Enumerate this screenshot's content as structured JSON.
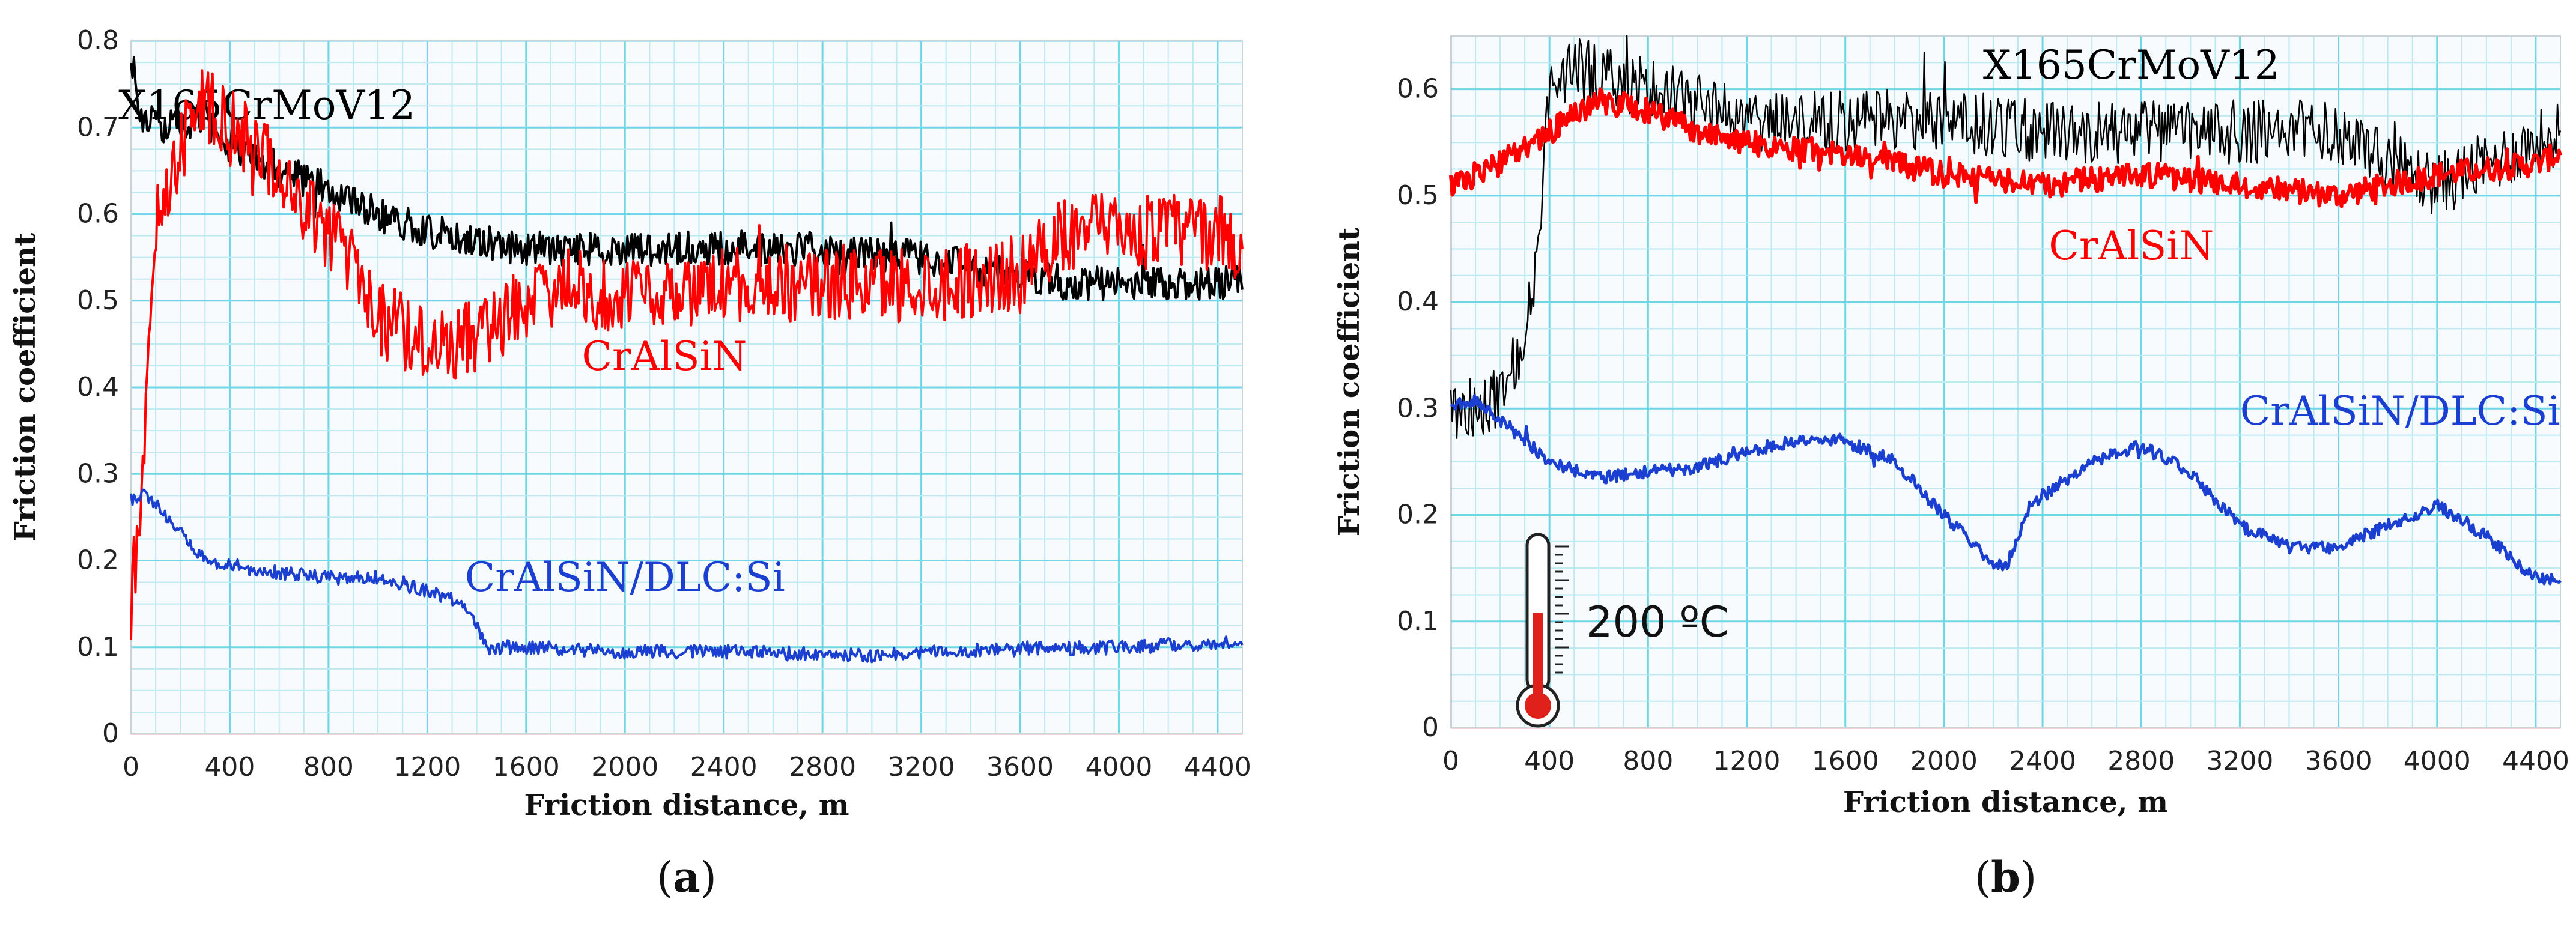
{
  "chart_data": [
    {
      "type": "line",
      "panel_label": "a",
      "caption": "(a)",
      "xlabel": "Friction distance, m",
      "ylabel": "Friction coefficient",
      "xlim": [
        0,
        4500
      ],
      "ylim": [
        0,
        0.8
      ],
      "xticks": [
        0,
        400,
        800,
        1200,
        1600,
        2000,
        2400,
        2800,
        3200,
        3600,
        4000,
        4400
      ],
      "yticks": [
        0,
        0.1,
        0.2,
        0.3,
        0.4,
        0.5,
        0.6,
        0.7,
        0.8
      ],
      "grid": true,
      "series": [
        {
          "name": "X165CrMoV12",
          "color": "#000000",
          "label_at": [
            550,
            0.71
          ],
          "noise": 0.02,
          "width": 4,
          "points": [
            [
              0,
              0.79
            ],
            [
              30,
              0.72
            ],
            [
              100,
              0.7
            ],
            [
              200,
              0.7
            ],
            [
              300,
              0.71
            ],
            [
              400,
              0.68
            ],
            [
              600,
              0.65
            ],
            [
              800,
              0.63
            ],
            [
              1000,
              0.6
            ],
            [
              1200,
              0.58
            ],
            [
              1400,
              0.57
            ],
            [
              1600,
              0.56
            ],
            [
              2000,
              0.56
            ],
            [
              2400,
              0.56
            ],
            [
              2800,
              0.56
            ],
            [
              3200,
              0.55
            ],
            [
              3600,
              0.53
            ],
            [
              3800,
              0.52
            ],
            [
              4000,
              0.52
            ],
            [
              4500,
              0.52
            ]
          ]
        },
        {
          "name": "CrAlSiN",
          "color": "#ff0000",
          "label_at": [
            2160,
            0.42
          ],
          "noise": 0.045,
          "width": 4,
          "points": [
            [
              0,
              0.15
            ],
            [
              50,
              0.3
            ],
            [
              100,
              0.6
            ],
            [
              150,
              0.62
            ],
            [
              200,
              0.68
            ],
            [
              300,
              0.73
            ],
            [
              400,
              0.7
            ],
            [
              500,
              0.68
            ],
            [
              600,
              0.64
            ],
            [
              800,
              0.58
            ],
            [
              900,
              0.55
            ],
            [
              1000,
              0.48
            ],
            [
              1200,
              0.45
            ],
            [
              1400,
              0.46
            ],
            [
              1600,
              0.5
            ],
            [
              1800,
              0.52
            ],
            [
              2000,
              0.5
            ],
            [
              2200,
              0.51
            ],
            [
              2400,
              0.52
            ],
            [
              2800,
              0.52
            ],
            [
              3200,
              0.52
            ],
            [
              3600,
              0.53
            ],
            [
              3800,
              0.58
            ],
            [
              4000,
              0.58
            ],
            [
              4400,
              0.58
            ],
            [
              4500,
              0.56
            ]
          ]
        },
        {
          "name": "CrAlSiN/DLC:Si",
          "color": "#1a3fd1",
          "label_at": [
            2000,
            0.165
          ],
          "noise": 0.008,
          "width": 4,
          "points": [
            [
              0,
              0.27
            ],
            [
              50,
              0.28
            ],
            [
              150,
              0.25
            ],
            [
              300,
              0.2
            ],
            [
              500,
              0.19
            ],
            [
              800,
              0.18
            ],
            [
              1000,
              0.18
            ],
            [
              1200,
              0.165
            ],
            [
              1350,
              0.15
            ],
            [
              1450,
              0.1
            ],
            [
              1600,
              0.1
            ],
            [
              2000,
              0.095
            ],
            [
              2400,
              0.095
            ],
            [
              3000,
              0.09
            ],
            [
              3200,
              0.095
            ],
            [
              4000,
              0.1
            ],
            [
              4400,
              0.105
            ],
            [
              4500,
              0.105
            ]
          ]
        }
      ]
    },
    {
      "type": "line",
      "panel_label": "b",
      "caption": "(b)",
      "xlabel": "Friction distance, m",
      "ylabel": "Friction coefficient",
      "xlim": [
        0,
        4500
      ],
      "ylim": [
        0,
        0.65
      ],
      "xticks": [
        0,
        400,
        800,
        1200,
        1600,
        2000,
        2400,
        2800,
        3200,
        3600,
        4000,
        4400
      ],
      "yticks": [
        0,
        0.1,
        0.2,
        0.3,
        0.4,
        0.5,
        0.6
      ],
      "grid": true,
      "temperature_label": "200 ºC",
      "series": [
        {
          "name": "X165CrMoV12",
          "color": "#000000",
          "label_at": [
            2760,
            0.61
          ],
          "noise": 0.03,
          "width": 2.5,
          "points": [
            [
              0,
              0.29
            ],
            [
              100,
              0.3
            ],
            [
              200,
              0.31
            ],
            [
              300,
              0.36
            ],
            [
              350,
              0.45
            ],
            [
              400,
              0.6
            ],
            [
              500,
              0.62
            ],
            [
              800,
              0.6
            ],
            [
              1200,
              0.57
            ],
            [
              1600,
              0.57
            ],
            [
              2000,
              0.57
            ],
            [
              2400,
              0.56
            ],
            [
              2800,
              0.56
            ],
            [
              3200,
              0.56
            ],
            [
              3600,
              0.56
            ],
            [
              3900,
              0.52
            ],
            [
              4000,
              0.51
            ],
            [
              4500,
              0.56
            ]
          ]
        },
        {
          "name": "CrAlSiN",
          "color": "#ff0000",
          "label_at": [
            2760,
            0.44
          ],
          "noise": 0.012,
          "width": 6,
          "points": [
            [
              0,
              0.51
            ],
            [
              200,
              0.53
            ],
            [
              400,
              0.56
            ],
            [
              600,
              0.59
            ],
            [
              800,
              0.58
            ],
            [
              1000,
              0.56
            ],
            [
              1200,
              0.55
            ],
            [
              1600,
              0.54
            ],
            [
              2000,
              0.52
            ],
            [
              2400,
              0.51
            ],
            [
              2800,
              0.52
            ],
            [
              3200,
              0.51
            ],
            [
              3600,
              0.5
            ],
            [
              4000,
              0.52
            ],
            [
              4400,
              0.53
            ],
            [
              4500,
              0.54
            ]
          ]
        },
        {
          "name": "CrAlSiN/DLC:Si",
          "color": "#1a3fd1",
          "label_at": [
            3850,
            0.285
          ],
          "noise": 0.006,
          "width": 5,
          "points": [
            [
              0,
              0.3
            ],
            [
              100,
              0.31
            ],
            [
              200,
              0.29
            ],
            [
              400,
              0.25
            ],
            [
              600,
              0.235
            ],
            [
              800,
              0.24
            ],
            [
              1000,
              0.245
            ],
            [
              1200,
              0.26
            ],
            [
              1400,
              0.27
            ],
            [
              1600,
              0.27
            ],
            [
              1800,
              0.25
            ],
            [
              2000,
              0.2
            ],
            [
              2200,
              0.155
            ],
            [
              2250,
              0.15
            ],
            [
              2350,
              0.21
            ],
            [
              2600,
              0.25
            ],
            [
              2800,
              0.265
            ],
            [
              3000,
              0.24
            ],
            [
              3200,
              0.19
            ],
            [
              3400,
              0.17
            ],
            [
              3600,
              0.17
            ],
            [
              3800,
              0.19
            ],
            [
              4000,
              0.21
            ],
            [
              4200,
              0.18
            ],
            [
              4400,
              0.14
            ],
            [
              4500,
              0.14
            ]
          ]
        }
      ]
    }
  ]
}
